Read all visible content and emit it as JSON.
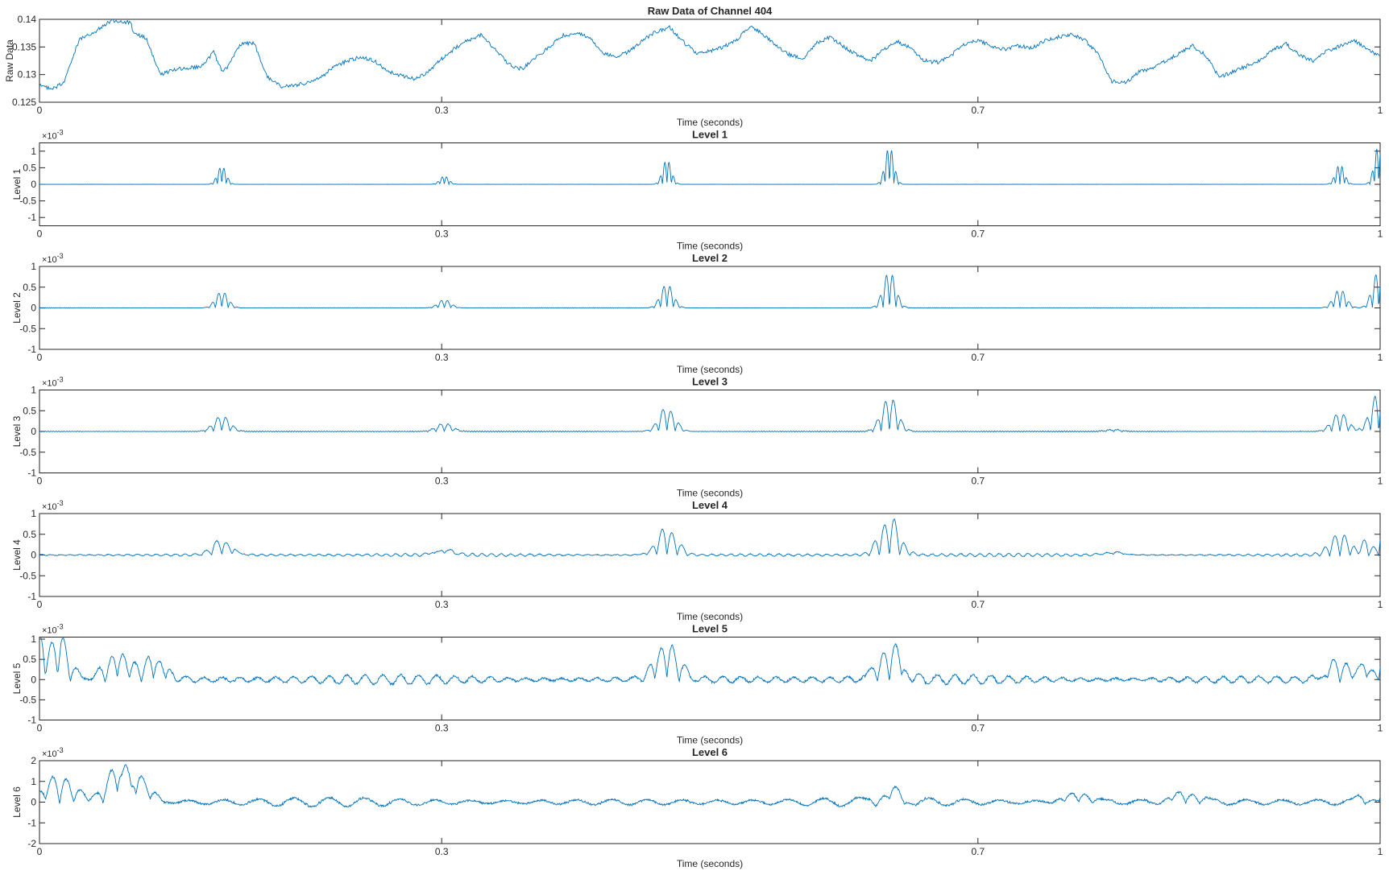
{
  "chart_data": [
    {
      "type": "line",
      "title": "Raw Data of Channel 404",
      "xlabel": "Time (seconds)",
      "ylabel": "Raw Data",
      "xlim": [
        0,
        1
      ],
      "ylim": [
        0.125,
        0.14
      ],
      "xticks": [
        0,
        0.3,
        0.7,
        1
      ],
      "xtick_labels": [
        "0",
        "0.3",
        "0.7",
        "1"
      ],
      "yticks": [
        0.125,
        0.13,
        0.135,
        0.14
      ],
      "ytick_labels": [
        "0.125",
        "0.13",
        "0.135",
        "0.14"
      ],
      "exponent_label": "",
      "grid": false,
      "color": "#0072BD",
      "series": [
        {
          "x": [
            0,
            0.01,
            0.018,
            0.03,
            0.04,
            0.052,
            0.054,
            0.06,
            0.068,
            0.07,
            0.08,
            0.09,
            0.1,
            0.11,
            0.12,
            0.13,
            0.136,
            0.14,
            0.15,
            0.16,
            0.17,
            0.18,
            0.19,
            0.2,
            0.21,
            0.22,
            0.23,
            0.24,
            0.25,
            0.26,
            0.27,
            0.28,
            0.29,
            0.3,
            0.31,
            0.32,
            0.33,
            0.34,
            0.35,
            0.36,
            0.37,
            0.38,
            0.39,
            0.4,
            0.41,
            0.42,
            0.43,
            0.44,
            0.45,
            0.46,
            0.47,
            0.48,
            0.49,
            0.5,
            0.51,
            0.52,
            0.53,
            0.54,
            0.55,
            0.56,
            0.57,
            0.58,
            0.59,
            0.6,
            0.61,
            0.62,
            0.63,
            0.64,
            0.65,
            0.66,
            0.67,
            0.68,
            0.69,
            0.7,
            0.71,
            0.72,
            0.73,
            0.74,
            0.75,
            0.76,
            0.77,
            0.78,
            0.79,
            0.8,
            0.81,
            0.82,
            0.83,
            0.84,
            0.85,
            0.86,
            0.87,
            0.88,
            0.89,
            0.9,
            0.91,
            0.92,
            0.93,
            0.94,
            0.95,
            0.96,
            0.97,
            0.98,
            0.99,
            1.0
          ],
          "y": [
            0.128,
            0.1275,
            0.1285,
            0.1365,
            0.1375,
            0.1395,
            0.1398,
            0.1395,
            0.1395,
            0.1375,
            0.1365,
            0.13,
            0.1308,
            0.1312,
            0.1315,
            0.134,
            0.1308,
            0.1312,
            0.1355,
            0.1358,
            0.1295,
            0.1278,
            0.128,
            0.1285,
            0.1295,
            0.1315,
            0.1325,
            0.1332,
            0.1325,
            0.1305,
            0.1298,
            0.1292,
            0.1305,
            0.1328,
            0.1348,
            0.1362,
            0.1372,
            0.1345,
            0.1318,
            0.131,
            0.133,
            0.135,
            0.137,
            0.1375,
            0.1368,
            0.134,
            0.1332,
            0.1342,
            0.1362,
            0.1378,
            0.1385,
            0.136,
            0.1338,
            0.1342,
            0.135,
            0.1362,
            0.1388,
            0.1372,
            0.1352,
            0.1335,
            0.133,
            0.1358,
            0.1368,
            0.135,
            0.1335,
            0.1325,
            0.1345,
            0.136,
            0.1348,
            0.1325,
            0.1322,
            0.1335,
            0.1355,
            0.1362,
            0.1352,
            0.1345,
            0.1352,
            0.1348,
            0.1362,
            0.1368,
            0.1372,
            0.1362,
            0.1335,
            0.1288,
            0.1285,
            0.1305,
            0.1312,
            0.1325,
            0.1338,
            0.1352,
            0.1335,
            0.1295,
            0.1305,
            0.1315,
            0.1325,
            0.1345,
            0.1355,
            0.1335,
            0.1325,
            0.1342,
            0.1352,
            0.1362,
            0.1348,
            0.1332
          ]
        }
      ]
    },
    {
      "type": "line",
      "title": "Level 1",
      "xlabel": "Time (seconds)",
      "ylabel": "Level 1",
      "xlim": [
        0,
        1
      ],
      "ylim": [
        -1.25,
        1.25
      ],
      "xticks": [
        0,
        0.3,
        0.7,
        1
      ],
      "xtick_labels": [
        "0",
        "0.3",
        "0.7",
        "1"
      ],
      "yticks": [
        -1,
        -0.5,
        0,
        0.5,
        1
      ],
      "ytick_labels": [
        "-1",
        "-0.5",
        "0",
        "0.5",
        "1"
      ],
      "exponent_label": "×10",
      "exponent_power": "-3",
      "grid": false,
      "color": "#0072BD",
      "spikes": [
        {
          "t": 0.136,
          "up": 0.55,
          "down": -0.55
        },
        {
          "t": 0.302,
          "up": 0.25,
          "down": -0.25
        },
        {
          "t": 0.468,
          "up": 0.75,
          "down": -0.75
        },
        {
          "t": 0.634,
          "up": 1.15,
          "down": -1.15
        },
        {
          "t": 0.97,
          "up": 0.6,
          "down": -0.6
        },
        {
          "t": 0.999,
          "up": 1.2,
          "down": -1.2
        }
      ]
    },
    {
      "type": "line",
      "title": "Level 2",
      "xlabel": "Time (seconds)",
      "ylabel": "Level 2",
      "xlim": [
        0,
        1
      ],
      "ylim": [
        -1,
        1
      ],
      "xticks": [
        0,
        0.3,
        0.7,
        1
      ],
      "xtick_labels": [
        "0",
        "0.3",
        "0.7",
        "1"
      ],
      "yticks": [
        -1,
        -0.5,
        0,
        0.5,
        1
      ],
      "ytick_labels": [
        "-1",
        "-0.5",
        "0",
        "0.5",
        "1"
      ],
      "exponent_label": "×10",
      "exponent_power": "-3",
      "grid": false,
      "color": "#0072BD",
      "spikes": [
        {
          "t": 0.136,
          "up": 0.4,
          "down": -0.4
        },
        {
          "t": 0.302,
          "up": 0.2,
          "down": -0.2
        },
        {
          "t": 0.468,
          "up": 0.58,
          "down": -0.58
        },
        {
          "t": 0.634,
          "up": 0.88,
          "down": -0.88
        },
        {
          "t": 0.97,
          "up": 0.45,
          "down": -0.45
        },
        {
          "t": 0.999,
          "up": 0.9,
          "down": -0.9
        }
      ]
    },
    {
      "type": "line",
      "title": "Level 3",
      "xlabel": "Time (seconds)",
      "ylabel": "Level 3",
      "xlim": [
        0,
        1
      ],
      "ylim": [
        -1,
        1
      ],
      "xticks": [
        0,
        0.3,
        0.7,
        1
      ],
      "xtick_labels": [
        "0",
        "0.3",
        "0.7",
        "1"
      ],
      "yticks": [
        -1,
        -0.5,
        0,
        0.5,
        1
      ],
      "ytick_labels": [
        "-1",
        "-0.5",
        "0",
        "0.5",
        "1"
      ],
      "exponent_label": "×10",
      "exponent_power": "-3",
      "grid": false,
      "color": "#0072BD",
      "spikes": [
        {
          "t": 0.136,
          "up": 0.38,
          "down": -0.38
        },
        {
          "t": 0.302,
          "up": 0.2,
          "down": -0.2
        },
        {
          "t": 0.468,
          "up": 0.55,
          "down": -0.6
        },
        {
          "t": 0.634,
          "up": 0.85,
          "down": -0.82
        },
        {
          "t": 0.801,
          "up": 0.05,
          "down": -0.05
        },
        {
          "t": 0.97,
          "up": 0.45,
          "down": -0.45
        },
        {
          "t": 0.999,
          "up": 0.95,
          "down": -0.95
        }
      ]
    },
    {
      "type": "line",
      "title": "Level 4",
      "xlabel": "Time (seconds)",
      "ylabel": "Level 4",
      "xlim": [
        0,
        1
      ],
      "ylim": [
        -1,
        1
      ],
      "xticks": [
        0,
        0.3,
        0.7,
        1
      ],
      "xtick_labels": [
        "0",
        "0.3",
        "0.7",
        "1"
      ],
      "yticks": [
        -1,
        -0.5,
        0,
        0.5,
        1
      ],
      "ytick_labels": [
        "-1",
        "-0.5",
        "0",
        "0.5",
        "1"
      ],
      "exponent_label": "×10",
      "exponent_power": "-3",
      "grid": false,
      "color": "#0072BD",
      "spikes": [
        {
          "t": 0.136,
          "up": 0.35,
          "down": -0.4
        },
        {
          "t": 0.302,
          "up": 0.18,
          "down": -0.15
        },
        {
          "t": 0.468,
          "up": 0.6,
          "down": -0.7
        },
        {
          "t": 0.634,
          "up": 0.95,
          "down": -0.8
        },
        {
          "t": 0.801,
          "up": 0.1,
          "down": -0.08
        },
        {
          "t": 0.97,
          "up": 0.5,
          "down": -0.5
        },
        {
          "t": 0.999,
          "up": 0.95,
          "down": -0.2
        }
      ]
    },
    {
      "type": "line",
      "title": "Level 5",
      "xlabel": "Time (seconds)",
      "ylabel": "Level 5",
      "xlim": [
        0,
        1
      ],
      "ylim": [
        -1,
        1.05
      ],
      "xticks": [
        0,
        0.3,
        0.7,
        1
      ],
      "xtick_labels": [
        "0",
        "0.3",
        "0.7",
        "1"
      ],
      "yticks": [
        -1,
        -0.5,
        0,
        0.5,
        1
      ],
      "ytick_labels": [
        "-1",
        "-0.5",
        "0",
        "0.5",
        "1"
      ],
      "exponent_label": "×10",
      "exponent_power": "-3",
      "grid": false,
      "color": "#0072BD",
      "spikes": [
        {
          "t": 0.004,
          "up": 0.4,
          "down": -0.95
        },
        {
          "t": 0.014,
          "up": 0.8,
          "down": -0.75
        },
        {
          "t": 0.058,
          "up": 0.75,
          "down": -0.6
        },
        {
          "t": 0.085,
          "up": 0.6,
          "down": -0.55
        },
        {
          "t": 0.468,
          "up": 0.9,
          "down": -0.95
        },
        {
          "t": 0.634,
          "up": 1.05,
          "down": -0.65
        },
        {
          "t": 0.97,
          "up": 0.4,
          "down": -0.55
        },
        {
          "t": 0.999,
          "up": 0.95,
          "down": -0.3
        }
      ]
    },
    {
      "type": "line",
      "title": "Level 6",
      "xlabel": "Time (seconds)",
      "ylabel": "Level 6",
      "xlim": [
        0,
        1
      ],
      "ylim": [
        -2,
        2
      ],
      "xticks": [
        0,
        0.3,
        0.7,
        1
      ],
      "xtick_labels": [
        "0",
        "0.3",
        "0.7",
        "1"
      ],
      "yticks": [
        -2,
        -1,
        0,
        1,
        2
      ],
      "ytick_labels": [
        "-2",
        "-1",
        "0",
        "1",
        "2"
      ],
      "exponent_label": "×10",
      "exponent_power": "-3",
      "grid": false,
      "color": "#0072BD",
      "spikes": [
        {
          "t": 0.015,
          "up": 1.4,
          "down": -1.3
        },
        {
          "t": 0.058,
          "up": 1.5,
          "down": -1.5
        },
        {
          "t": 0.072,
          "up": 1.2,
          "down": -1.0
        },
        {
          "t": 0.634,
          "up": 0.6,
          "down": -0.4
        },
        {
          "t": 0.775,
          "up": 0.5,
          "down": -0.4
        },
        {
          "t": 0.855,
          "up": 0.55,
          "down": -0.4
        },
        {
          "t": 0.999,
          "up": 0.7,
          "down": -0.3
        }
      ]
    }
  ]
}
